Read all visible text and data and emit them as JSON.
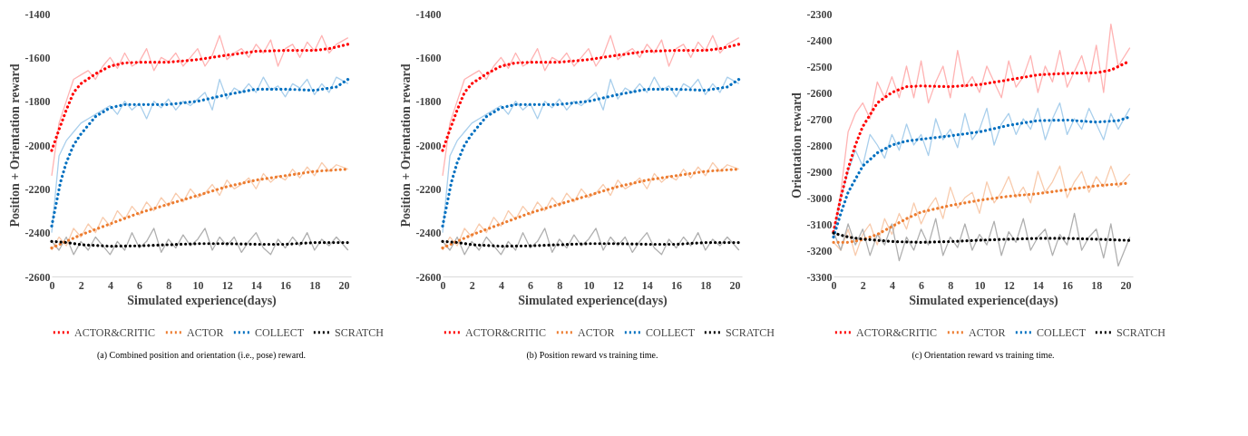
{
  "chart_data": [
    {
      "type": "line",
      "xlabel": "Simulated experience(days)",
      "ylabel": "Position + Orientation reward",
      "xlim": [
        0,
        20.5
      ],
      "xticks": [
        0,
        2,
        4,
        6,
        8,
        10,
        12,
        14,
        16,
        18,
        20
      ],
      "ylim": [
        -2600,
        -1400
      ],
      "yticks": [
        -2600,
        -2400,
        -2200,
        -2000,
        -1800,
        -1600,
        -1400
      ],
      "grid": false,
      "legend": "bottom",
      "marker": "none",
      "annotations": [
        "(a) Combined position and orientation (i.e., pose) reward."
      ],
      "series": [
        {
          "color": "#ffb3b3",
          "line_style": "solid",
          "x": [
            0,
            0.5,
            1,
            1.5,
            2,
            2.5,
            3,
            3.5,
            4,
            4.5,
            5,
            5.5,
            6,
            6.5,
            7,
            7.5,
            8,
            8.5,
            9,
            9.5,
            10,
            10.5,
            11,
            11.5,
            12,
            12.5,
            13,
            13.5,
            14,
            14.5,
            15,
            15.5,
            16,
            16.5,
            17,
            17.5,
            18,
            18.5,
            19,
            19.5,
            20.3
          ],
          "values": [
            -2140,
            -1900,
            -1800,
            -1700,
            -1680,
            -1660,
            -1700,
            -1640,
            -1600,
            -1650,
            -1580,
            -1640,
            -1620,
            -1560,
            -1660,
            -1600,
            -1620,
            -1580,
            -1640,
            -1600,
            -1560,
            -1640,
            -1590,
            -1500,
            -1610,
            -1580,
            -1560,
            -1600,
            -1540,
            -1580,
            -1520,
            -1640,
            -1560,
            -1540,
            -1600,
            -1530,
            -1570,
            -1500,
            -1580,
            -1540,
            -1510
          ]
        },
        {
          "color": "#f8cbad",
          "line_style": "solid",
          "x": [
            0,
            0.5,
            1,
            1.5,
            2,
            2.5,
            3,
            3.5,
            4,
            4.5,
            5,
            5.5,
            6,
            6.5,
            7,
            7.5,
            8,
            8.5,
            9,
            9.5,
            10,
            10.5,
            11,
            11.5,
            12,
            12.5,
            13,
            13.5,
            14,
            14.5,
            15,
            15.5,
            16,
            16.5,
            17,
            17.5,
            18,
            18.5,
            19,
            19.5,
            20.3
          ],
          "values": [
            -2480,
            -2420,
            -2460,
            -2380,
            -2420,
            -2360,
            -2400,
            -2330,
            -2370,
            -2300,
            -2340,
            -2280,
            -2320,
            -2260,
            -2300,
            -2240,
            -2280,
            -2220,
            -2260,
            -2200,
            -2240,
            -2220,
            -2180,
            -2230,
            -2160,
            -2200,
            -2180,
            -2150,
            -2200,
            -2130,
            -2170,
            -2140,
            -2160,
            -2110,
            -2150,
            -2100,
            -2140,
            -2080,
            -2120,
            -2090,
            -2110
          ]
        },
        {
          "color": "#a9cfec",
          "line_style": "solid",
          "x": [
            0,
            0.5,
            1,
            1.5,
            2,
            2.5,
            3,
            3.5,
            4,
            4.5,
            5,
            5.5,
            6,
            6.5,
            7,
            7.5,
            8,
            8.5,
            9,
            9.5,
            10,
            10.5,
            11,
            11.5,
            12,
            12.5,
            13,
            13.5,
            14,
            14.5,
            15,
            15.5,
            16,
            16.5,
            17,
            17.5,
            18,
            18.5,
            19,
            19.5,
            20.3
          ],
          "values": [
            -2400,
            -2050,
            -1980,
            -1940,
            -1900,
            -1880,
            -1860,
            -1840,
            -1820,
            -1860,
            -1800,
            -1840,
            -1810,
            -1880,
            -1800,
            -1830,
            -1790,
            -1840,
            -1800,
            -1820,
            -1790,
            -1760,
            -1840,
            -1700,
            -1790,
            -1740,
            -1760,
            -1720,
            -1760,
            -1690,
            -1750,
            -1730,
            -1780,
            -1720,
            -1740,
            -1700,
            -1770,
            -1720,
            -1760,
            -1690,
            -1720
          ]
        },
        {
          "color": "#b0b0b0",
          "line_style": "solid",
          "x": [
            0,
            0.5,
            1,
            1.5,
            2,
            2.5,
            3,
            3.5,
            4,
            4.5,
            5,
            5.5,
            6,
            6.5,
            7,
            7.5,
            8,
            8.5,
            9,
            9.5,
            10,
            10.5,
            11,
            11.5,
            12,
            12.5,
            13,
            13.5,
            14,
            14.5,
            15,
            15.5,
            16,
            16.5,
            17,
            17.5,
            18,
            18.5,
            19,
            19.5,
            20.3
          ],
          "values": [
            -2440,
            -2480,
            -2420,
            -2500,
            -2440,
            -2480,
            -2420,
            -2460,
            -2500,
            -2440,
            -2480,
            -2400,
            -2470,
            -2440,
            -2380,
            -2490,
            -2430,
            -2470,
            -2410,
            -2460,
            -2430,
            -2380,
            -2480,
            -2420,
            -2460,
            -2420,
            -2490,
            -2440,
            -2400,
            -2470,
            -2500,
            -2430,
            -2470,
            -2420,
            -2460,
            -2400,
            -2480,
            -2430,
            -2460,
            -2420,
            -2480
          ]
        },
        {
          "name": "ACTOR&CRITIC",
          "color": "#ff0000",
          "line_style": "dotted",
          "x": [
            0,
            0.5,
            1,
            1.5,
            2,
            3,
            4,
            5,
            6,
            8,
            10,
            12,
            14,
            16,
            18,
            19,
            20.3
          ],
          "values": [
            -2025,
            -1930,
            -1840,
            -1760,
            -1720,
            -1675,
            -1640,
            -1625,
            -1622,
            -1622,
            -1610,
            -1590,
            -1572,
            -1568,
            -1568,
            -1560,
            -1540
          ]
        },
        {
          "name": "ACTOR",
          "color": "#ed7d31",
          "line_style": "dotted",
          "x": [
            0,
            2,
            4,
            6,
            8,
            10,
            12,
            14,
            16,
            18,
            20.3
          ],
          "values": [
            -2470,
            -2410,
            -2360,
            -2310,
            -2270,
            -2230,
            -2190,
            -2160,
            -2140,
            -2120,
            -2110
          ]
        },
        {
          "name": "COLLECT",
          "color": "#0070c0",
          "line_style": "dotted",
          "x": [
            0,
            0.3,
            0.6,
            1,
            1.5,
            2,
            3,
            4,
            5,
            6,
            8,
            10,
            12,
            14,
            16,
            18,
            19.5,
            20.3
          ],
          "values": [
            -2370,
            -2270,
            -2170,
            -2080,
            -2000,
            -1950,
            -1870,
            -1830,
            -1815,
            -1815,
            -1815,
            -1800,
            -1770,
            -1745,
            -1745,
            -1750,
            -1735,
            -1700
          ]
        },
        {
          "name": "SCRATCH",
          "color": "#000000",
          "line_style": "dotted",
          "x": [
            0,
            1,
            2,
            4,
            6,
            8,
            10,
            12,
            14,
            16,
            18,
            20.3
          ],
          "values": [
            -2440,
            -2445,
            -2455,
            -2462,
            -2460,
            -2455,
            -2450,
            -2450,
            -2453,
            -2453,
            -2445,
            -2445
          ]
        }
      ]
    },
    {
      "type": "line",
      "xlabel": "Simulated experience(days)",
      "ylabel": "Position + Orientation reward",
      "xlim": [
        0,
        20.5
      ],
      "xticks": [
        0,
        2,
        4,
        6,
        8,
        10,
        12,
        14,
        16,
        18,
        20
      ],
      "ylim": [
        -2600,
        -1400
      ],
      "yticks": [
        -2600,
        -2400,
        -2200,
        -2000,
        -1800,
        -1600,
        -1400
      ],
      "grid": false,
      "legend": "bottom",
      "marker": "none",
      "annotations": [
        "(b) Position reward vs training time."
      ],
      "series": [
        {
          "color": "#ffb3b3",
          "line_style": "solid",
          "x": [
            0,
            0.5,
            1,
            1.5,
            2,
            2.5,
            3,
            3.5,
            4,
            4.5,
            5,
            5.5,
            6,
            6.5,
            7,
            7.5,
            8,
            8.5,
            9,
            9.5,
            10,
            10.5,
            11,
            11.5,
            12,
            12.5,
            13,
            13.5,
            14,
            14.5,
            15,
            15.5,
            16,
            16.5,
            17,
            17.5,
            18,
            18.5,
            19,
            19.5,
            20.3
          ],
          "values": [
            -2140,
            -1900,
            -1800,
            -1700,
            -1680,
            -1660,
            -1700,
            -1640,
            -1600,
            -1650,
            -1580,
            -1640,
            -1620,
            -1560,
            -1660,
            -1600,
            -1620,
            -1580,
            -1640,
            -1600,
            -1560,
            -1640,
            -1590,
            -1500,
            -1610,
            -1580,
            -1560,
            -1600,
            -1540,
            -1580,
            -1520,
            -1640,
            -1560,
            -1540,
            -1600,
            -1530,
            -1570,
            -1500,
            -1580,
            -1540,
            -1510
          ]
        },
        {
          "color": "#f8cbad",
          "line_style": "solid",
          "x": [
            0,
            0.5,
            1,
            1.5,
            2,
            2.5,
            3,
            3.5,
            4,
            4.5,
            5,
            5.5,
            6,
            6.5,
            7,
            7.5,
            8,
            8.5,
            9,
            9.5,
            10,
            10.5,
            11,
            11.5,
            12,
            12.5,
            13,
            13.5,
            14,
            14.5,
            15,
            15.5,
            16,
            16.5,
            17,
            17.5,
            18,
            18.5,
            19,
            19.5,
            20.3
          ],
          "values": [
            -2480,
            -2420,
            -2460,
            -2380,
            -2420,
            -2360,
            -2400,
            -2330,
            -2370,
            -2300,
            -2340,
            -2280,
            -2320,
            -2260,
            -2300,
            -2240,
            -2280,
            -2220,
            -2260,
            -2200,
            -2240,
            -2220,
            -2180,
            -2230,
            -2160,
            -2200,
            -2180,
            -2150,
            -2200,
            -2130,
            -2170,
            -2140,
            -2160,
            -2110,
            -2150,
            -2100,
            -2140,
            -2080,
            -2120,
            -2090,
            -2110
          ]
        },
        {
          "color": "#a9cfec",
          "line_style": "solid",
          "x": [
            0,
            0.5,
            1,
            1.5,
            2,
            2.5,
            3,
            3.5,
            4,
            4.5,
            5,
            5.5,
            6,
            6.5,
            7,
            7.5,
            8,
            8.5,
            9,
            9.5,
            10,
            10.5,
            11,
            11.5,
            12,
            12.5,
            13,
            13.5,
            14,
            14.5,
            15,
            15.5,
            16,
            16.5,
            17,
            17.5,
            18,
            18.5,
            19,
            19.5,
            20.3
          ],
          "values": [
            -2400,
            -2050,
            -1980,
            -1940,
            -1900,
            -1880,
            -1860,
            -1840,
            -1820,
            -1860,
            -1800,
            -1840,
            -1810,
            -1880,
            -1800,
            -1830,
            -1790,
            -1840,
            -1800,
            -1820,
            -1790,
            -1760,
            -1840,
            -1700,
            -1790,
            -1740,
            -1760,
            -1720,
            -1760,
            -1690,
            -1750,
            -1730,
            -1780,
            -1720,
            -1740,
            -1700,
            -1770,
            -1720,
            -1760,
            -1690,
            -1720
          ]
        },
        {
          "color": "#b0b0b0",
          "line_style": "solid",
          "x": [
            0,
            0.5,
            1,
            1.5,
            2,
            2.5,
            3,
            3.5,
            4,
            4.5,
            5,
            5.5,
            6,
            6.5,
            7,
            7.5,
            8,
            8.5,
            9,
            9.5,
            10,
            10.5,
            11,
            11.5,
            12,
            12.5,
            13,
            13.5,
            14,
            14.5,
            15,
            15.5,
            16,
            16.5,
            17,
            17.5,
            18,
            18.5,
            19,
            19.5,
            20.3
          ],
          "values": [
            -2440,
            -2480,
            -2420,
            -2500,
            -2440,
            -2480,
            -2420,
            -2460,
            -2500,
            -2440,
            -2480,
            -2400,
            -2470,
            -2440,
            -2380,
            -2490,
            -2430,
            -2470,
            -2410,
            -2460,
            -2430,
            -2380,
            -2480,
            -2420,
            -2460,
            -2420,
            -2490,
            -2440,
            -2400,
            -2470,
            -2500,
            -2430,
            -2470,
            -2420,
            -2460,
            -2400,
            -2480,
            -2430,
            -2460,
            -2420,
            -2480
          ]
        },
        {
          "name": "ACTOR&CRITIC",
          "color": "#ff0000",
          "line_style": "dotted",
          "x": [
            0,
            0.5,
            1,
            1.5,
            2,
            3,
            4,
            5,
            6,
            8,
            10,
            12,
            14,
            16,
            18,
            19,
            20.3
          ],
          "values": [
            -2025,
            -1930,
            -1840,
            -1760,
            -1720,
            -1675,
            -1640,
            -1625,
            -1622,
            -1622,
            -1610,
            -1590,
            -1572,
            -1568,
            -1568,
            -1560,
            -1540
          ]
        },
        {
          "name": "ACTOR",
          "color": "#ed7d31",
          "line_style": "dotted",
          "x": [
            0,
            2,
            4,
            6,
            8,
            10,
            12,
            14,
            16,
            18,
            20.3
          ],
          "values": [
            -2470,
            -2410,
            -2360,
            -2310,
            -2270,
            -2230,
            -2190,
            -2160,
            -2140,
            -2120,
            -2110
          ]
        },
        {
          "name": "COLLECT",
          "color": "#0070c0",
          "line_style": "dotted",
          "x": [
            0,
            0.3,
            0.6,
            1,
            1.5,
            2,
            3,
            4,
            5,
            6,
            8,
            10,
            12,
            14,
            16,
            18,
            19.5,
            20.3
          ],
          "values": [
            -2370,
            -2270,
            -2170,
            -2080,
            -2000,
            -1950,
            -1870,
            -1830,
            -1815,
            -1815,
            -1815,
            -1800,
            -1770,
            -1745,
            -1745,
            -1750,
            -1735,
            -1700
          ]
        },
        {
          "name": "SCRATCH",
          "color": "#000000",
          "line_style": "dotted",
          "x": [
            0,
            1,
            2,
            4,
            6,
            8,
            10,
            12,
            14,
            16,
            18,
            20.3
          ],
          "values": [
            -2440,
            -2445,
            -2455,
            -2462,
            -2460,
            -2455,
            -2450,
            -2450,
            -2453,
            -2453,
            -2445,
            -2445
          ]
        }
      ]
    },
    {
      "type": "line",
      "xlabel": "Simulated experience(days)",
      "ylabel": "Orientation reward",
      "xlim": [
        0,
        20.5
      ],
      "xticks": [
        0,
        2,
        4,
        6,
        8,
        10,
        12,
        14,
        16,
        18,
        20
      ],
      "ylim": [
        -3300,
        -2300
      ],
      "yticks": [
        -3300,
        -3200,
        -3100,
        -3000,
        -2900,
        -2800,
        -2700,
        -2600,
        -2500,
        -2400,
        -2300
      ],
      "grid": false,
      "legend": "bottom",
      "marker": "none",
      "annotations": [
        "(c) Orientation reward vs training time."
      ],
      "series": [
        {
          "color": "#ffb3b3",
          "line_style": "solid",
          "x": [
            0,
            0.5,
            1,
            1.5,
            2,
            2.5,
            3,
            3.5,
            4,
            4.5,
            5,
            5.5,
            6,
            6.5,
            7,
            7.5,
            8,
            8.5,
            9,
            9.5,
            10,
            10.5,
            11,
            11.5,
            12,
            12.5,
            13,
            13.5,
            14,
            14.5,
            15,
            15.5,
            16,
            16.5,
            17,
            17.5,
            18,
            18.5,
            19,
            19.5,
            20.3
          ],
          "values": [
            -3130,
            -2980,
            -2750,
            -2680,
            -2640,
            -2700,
            -2560,
            -2620,
            -2540,
            -2620,
            -2500,
            -2620,
            -2480,
            -2640,
            -2560,
            -2500,
            -2620,
            -2440,
            -2580,
            -2540,
            -2600,
            -2500,
            -2560,
            -2620,
            -2480,
            -2580,
            -2540,
            -2460,
            -2600,
            -2500,
            -2560,
            -2440,
            -2580,
            -2520,
            -2460,
            -2560,
            -2420,
            -2600,
            -2340,
            -2500,
            -2430
          ]
        },
        {
          "color": "#f8cbad",
          "line_style": "solid",
          "x": [
            0,
            0.5,
            1,
            1.5,
            2,
            2.5,
            3,
            3.5,
            4,
            4.5,
            5,
            5.5,
            6,
            6.5,
            7,
            7.5,
            8,
            8.5,
            9,
            9.5,
            10,
            10.5,
            11,
            11.5,
            12,
            12.5,
            13,
            13.5,
            14,
            14.5,
            15,
            15.5,
            16,
            16.5,
            17,
            17.5,
            18,
            18.5,
            19,
            19.5,
            20.3
          ],
          "values": [
            -3170,
            -3200,
            -3120,
            -3220,
            -3140,
            -3100,
            -3180,
            -3080,
            -3140,
            -3060,
            -3120,
            -3020,
            -3100,
            -3040,
            -3000,
            -3080,
            -2960,
            -3040,
            -3000,
            -2980,
            -3060,
            -2940,
            -3020,
            -2980,
            -2920,
            -3000,
            -2960,
            -3020,
            -2900,
            -2980,
            -2940,
            -2880,
            -3000,
            -2940,
            -2900,
            -2980,
            -2920,
            -2960,
            -2880,
            -2960,
            -2910
          ]
        },
        {
          "color": "#a9cfec",
          "line_style": "solid",
          "x": [
            0,
            0.5,
            1,
            1.5,
            2,
            2.5,
            3,
            3.5,
            4,
            4.5,
            5,
            5.5,
            6,
            6.5,
            7,
            7.5,
            8,
            8.5,
            9,
            9.5,
            10,
            10.5,
            11,
            11.5,
            12,
            12.5,
            13,
            13.5,
            14,
            14.5,
            15,
            15.5,
            16,
            16.5,
            17,
            17.5,
            18,
            18.5,
            19,
            19.5,
            20.3
          ],
          "values": [
            -3150,
            -3000,
            -2900,
            -2820,
            -2880,
            -2760,
            -2800,
            -2850,
            -2760,
            -2820,
            -2720,
            -2800,
            -2760,
            -2840,
            -2700,
            -2780,
            -2740,
            -2810,
            -2680,
            -2780,
            -2740,
            -2660,
            -2800,
            -2720,
            -2680,
            -2760,
            -2700,
            -2740,
            -2660,
            -2780,
            -2700,
            -2640,
            -2760,
            -2700,
            -2740,
            -2660,
            -2720,
            -2780,
            -2680,
            -2740,
            -2660
          ]
        },
        {
          "color": "#b0b0b0",
          "line_style": "solid",
          "x": [
            0,
            0.5,
            1,
            1.5,
            2,
            2.5,
            3,
            3.5,
            4,
            4.5,
            5,
            5.5,
            6,
            6.5,
            7,
            7.5,
            8,
            8.5,
            9,
            9.5,
            10,
            10.5,
            11,
            11.5,
            12,
            12.5,
            13,
            13.5,
            14,
            14.5,
            15,
            15.5,
            16,
            16.5,
            17,
            17.5,
            18,
            18.5,
            19,
            19.5,
            20.3
          ],
          "values": [
            -3130,
            -3200,
            -3100,
            -3180,
            -3120,
            -3220,
            -3140,
            -3180,
            -3100,
            -3240,
            -3150,
            -3200,
            -3120,
            -3180,
            -3080,
            -3220,
            -3150,
            -3190,
            -3100,
            -3200,
            -3140,
            -3180,
            -3090,
            -3220,
            -3130,
            -3170,
            -3080,
            -3200,
            -3150,
            -3120,
            -3220,
            -3140,
            -3180,
            -3060,
            -3200,
            -3150,
            -3120,
            -3230,
            -3100,
            -3260,
            -3150
          ]
        },
        {
          "name": "ACTOR&CRITIC",
          "color": "#ff0000",
          "line_style": "dotted",
          "x": [
            0,
            0.5,
            1,
            1.5,
            2,
            3,
            4,
            5,
            6,
            8,
            10,
            12,
            14,
            16,
            18,
            19,
            20.3
          ],
          "values": [
            -3130,
            -3000,
            -2890,
            -2800,
            -2730,
            -2640,
            -2600,
            -2578,
            -2575,
            -2578,
            -2570,
            -2552,
            -2533,
            -2527,
            -2525,
            -2515,
            -2480
          ]
        },
        {
          "name": "ACTOR",
          "color": "#ed7d31",
          "line_style": "dotted",
          "x": [
            0,
            1,
            2,
            3,
            4,
            5,
            6,
            8,
            10,
            12,
            14,
            16,
            18,
            20.3
          ],
          "values": [
            -3170,
            -3170,
            -3160,
            -3140,
            -3110,
            -3080,
            -3055,
            -3030,
            -3010,
            -2995,
            -2985,
            -2970,
            -2955,
            -2945
          ]
        },
        {
          "name": "COLLECT",
          "color": "#0070c0",
          "line_style": "dotted",
          "x": [
            0,
            0.5,
            1,
            2,
            3,
            4,
            5,
            6,
            8,
            10,
            12,
            14,
            16,
            18,
            19.5,
            20.3
          ],
          "values": [
            -3150,
            -3060,
            -2980,
            -2880,
            -2830,
            -2800,
            -2785,
            -2778,
            -2765,
            -2750,
            -2725,
            -2707,
            -2705,
            -2713,
            -2707,
            -2693
          ]
        },
        {
          "name": "SCRATCH",
          "color": "#000000",
          "line_style": "dotted",
          "x": [
            0,
            1,
            2,
            4,
            6,
            8,
            10,
            12,
            14,
            16,
            18,
            20.3
          ],
          "values": [
            -3135,
            -3150,
            -3158,
            -3167,
            -3170,
            -3167,
            -3162,
            -3158,
            -3155,
            -3155,
            -3158,
            -3163
          ]
        }
      ]
    }
  ]
}
